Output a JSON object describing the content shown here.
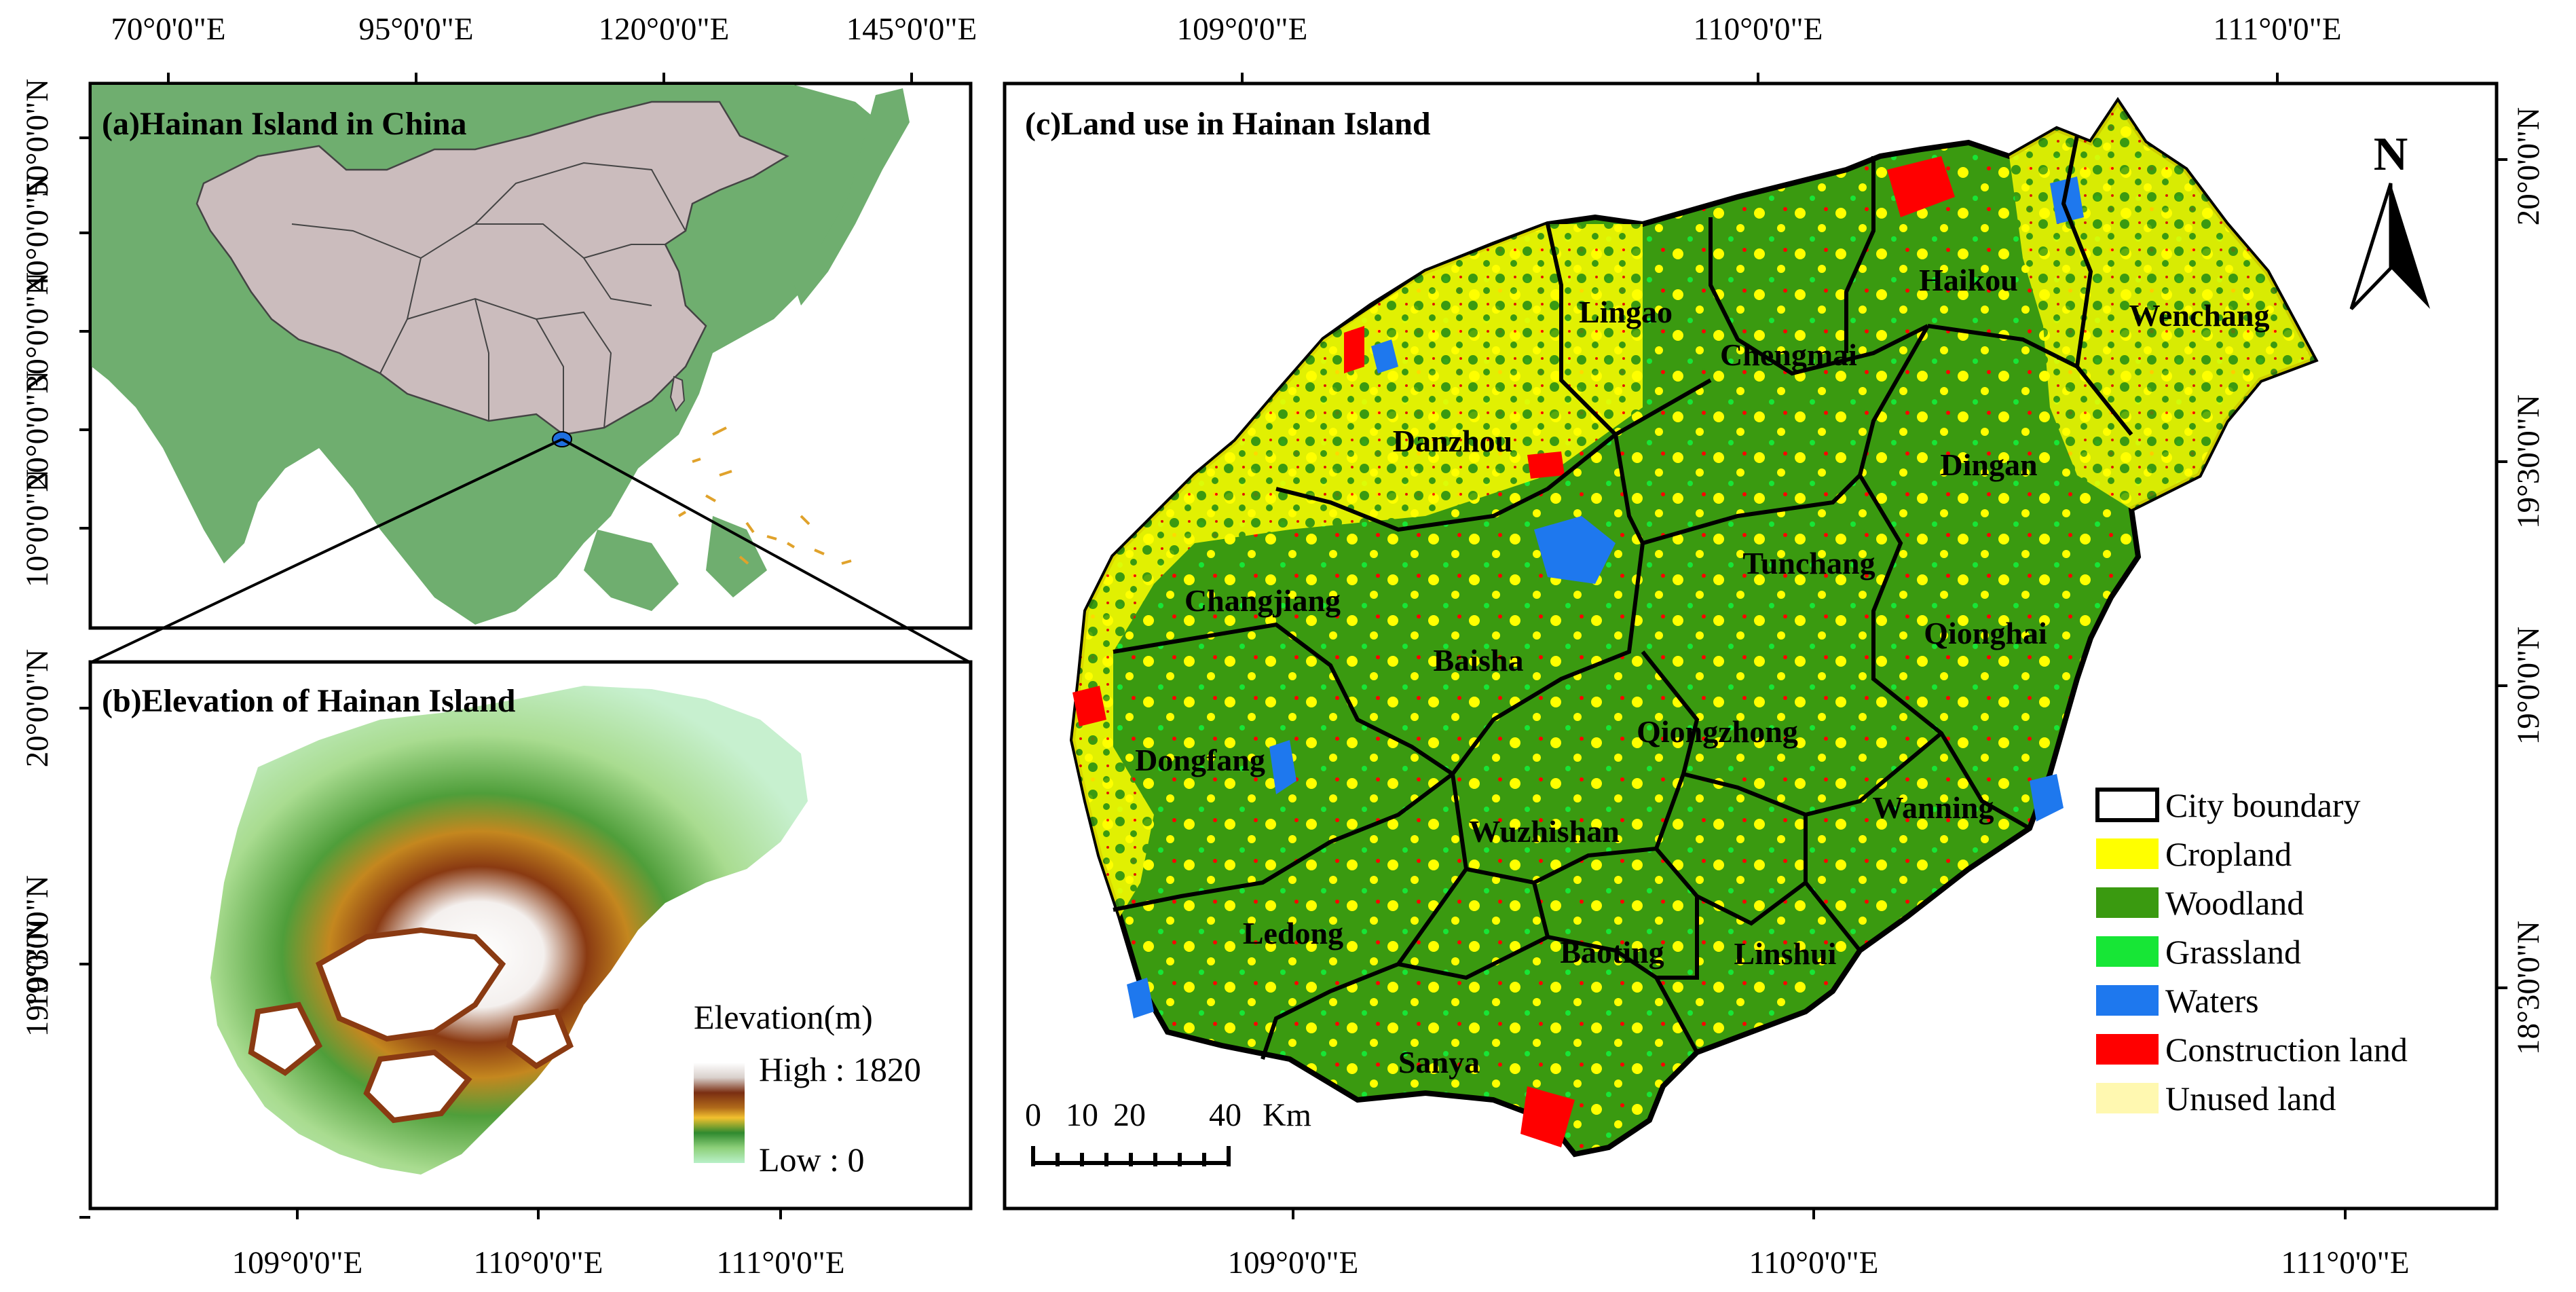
{
  "panel_a": {
    "title": "(a)Hainan Island in China",
    "top_labels": [
      "70°0'0\"E",
      "95°0'0\"E",
      "120°0'0\"E",
      "145°0'0\"E"
    ],
    "left_labels": [
      "50°0'0\"N",
      "40°0'0\"N",
      "30°0'0\"N",
      "20°0'0\"N",
      "10°0'0\"N"
    ],
    "colors": {
      "ocean": "#ffffff",
      "land": "#6fae6f",
      "china": "#cbbcbd",
      "hainan": "#1f6fe0",
      "islands": "#e0a22b"
    }
  },
  "panel_b": {
    "title": "(b)Elevation of Hainan Island",
    "bottom_labels": [
      "109°0'0\"E",
      "110°0'0\"E",
      "111°0'0\"E"
    ],
    "left_labels": [
      "20°0'0\"N",
      "19°30'0\"N",
      "19°0'0\"N"
    ],
    "legend_title": "Elevation(m)",
    "legend_high": "High : 1820",
    "legend_low": "Low : 0",
    "ramp_colors": [
      "#ffffff",
      "#d9d0cc",
      "#7a2e12",
      "#b06a1a",
      "#f2c12e",
      "#2f8a2f",
      "#8ed07a",
      "#b8f0c8"
    ]
  },
  "panel_c": {
    "title": "(c)Land use in Hainan Island",
    "top_labels": [
      "109°0'0\"E",
      "110°0'0\"E",
      "111°0'0\"E"
    ],
    "bottom_labels": [
      "109°0'0\"E",
      "110°0'0\"E",
      "111°0'0\"E"
    ],
    "right_labels": [
      "20°0'0\"N",
      "19°30'0\"N",
      "19°0'0\"N",
      "18°30'0\"N"
    ],
    "north_label": "N",
    "scale": {
      "ticks": [
        "0",
        "10",
        "20",
        "40"
      ],
      "unit": "Km"
    },
    "cities": [
      "Lingao",
      "Haikou",
      "Wenchang",
      "Chengmai",
      "Danzhou",
      "Dingan",
      "Tunchang",
      "Changjiang",
      "Baisha",
      "Qionghai",
      "Qiongzhong",
      "Dongfang",
      "Wanning",
      "Wuzhishan",
      "Ledong",
      "Baoting",
      "Linshui",
      "Sanya"
    ],
    "legend": [
      {
        "label": "City boundary",
        "color": "#ffffff"
      },
      {
        "label": "Cropland",
        "color": "#ffff00"
      },
      {
        "label": "Woodland",
        "color": "#3a9a10"
      },
      {
        "label": "Grassland",
        "color": "#17e636"
      },
      {
        "label": "Waters",
        "color": "#1e78ee"
      },
      {
        "label": "Construction land",
        "color": "#ff0000"
      },
      {
        "label": "Unused land",
        "color": "#fff8b0"
      }
    ]
  }
}
